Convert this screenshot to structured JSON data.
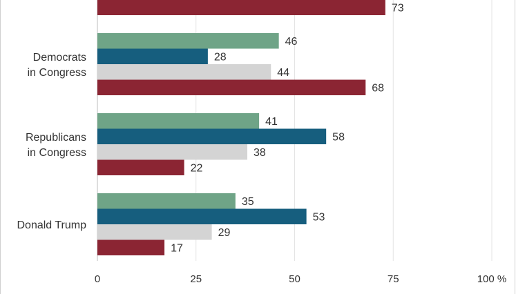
{
  "chart_data": {
    "type": "bar",
    "orientation": "horizontal",
    "categories": [
      "",
      "Democrats in Congress",
      "Republicans in Congress",
      "Donald Trump"
    ],
    "category_lines": [
      [],
      [
        "Democrats",
        "in Congress"
      ],
      [
        "Republicans",
        "in Congress"
      ],
      [
        "Donald Trump"
      ]
    ],
    "series": [
      {
        "color": "#6fa487",
        "values": [
          null,
          46,
          41,
          35
        ]
      },
      {
        "color": "#165e7e",
        "values": [
          null,
          28,
          58,
          53
        ]
      },
      {
        "color": "#d4d4d4",
        "values": [
          null,
          44,
          38,
          29
        ]
      },
      {
        "color": "#8b2533",
        "values": [
          73,
          68,
          22,
          17
        ]
      }
    ],
    "xlim": [
      0,
      100
    ],
    "xticks": [
      0,
      25,
      50,
      75,
      100
    ],
    "xtick_labels": [
      "0",
      "25",
      "50",
      "75",
      "100 %"
    ],
    "grid": true,
    "legend": "none"
  }
}
